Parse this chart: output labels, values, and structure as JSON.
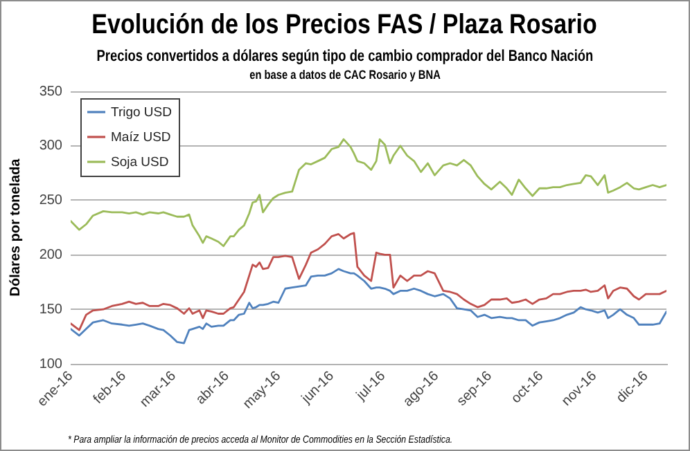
{
  "chart_data": {
    "type": "line",
    "title": "Evolución de los Precios FAS / Plaza Rosario",
    "subtitle": "Precios convertidos a dólares según tipo de cambio comprador del Banco Nación",
    "ylabel": "Dólares por tonelada",
    "annotations": [
      "en base a datos de CAC Rosario y BNA",
      "* Para ampliar la información de precios acceda al Monitor de Commodities en la Sección Estadística."
    ],
    "x": [
      "2016-01-04",
      "2016-01-09",
      "2016-01-13",
      "2016-01-17",
      "2016-01-23",
      "2016-01-28",
      "2016-02-03",
      "2016-02-07",
      "2016-02-11",
      "2016-02-15",
      "2016-02-19",
      "2016-02-24",
      "2016-02-27",
      "2016-03-02",
      "2016-03-06",
      "2016-03-10",
      "2016-03-13",
      "2016-03-15",
      "2016-03-19",
      "2016-03-21",
      "2016-03-23",
      "2016-03-26",
      "2016-03-30",
      "2016-04-02",
      "2016-04-06",
      "2016-04-08",
      "2016-04-11",
      "2016-04-14",
      "2016-04-17",
      "2016-04-19",
      "2016-04-21",
      "2016-04-23",
      "2016-04-25",
      "2016-04-28",
      "2016-05-01",
      "2016-05-04",
      "2016-05-08",
      "2016-05-12",
      "2016-05-16",
      "2016-05-20",
      "2016-05-23",
      "2016-05-27",
      "2016-05-31",
      "2016-06-04",
      "2016-06-08",
      "2016-06-11",
      "2016-06-15",
      "2016-06-17",
      "2016-06-19",
      "2016-06-23",
      "2016-06-27",
      "2016-06-30",
      "2016-07-02",
      "2016-07-05",
      "2016-07-08",
      "2016-07-10",
      "2016-07-14",
      "2016-07-18",
      "2016-07-22",
      "2016-07-26",
      "2016-07-30",
      "2016-08-03",
      "2016-08-08",
      "2016-08-12",
      "2016-08-16",
      "2016-08-20",
      "2016-08-24",
      "2016-08-28",
      "2016-09-01",
      "2016-09-05",
      "2016-09-10",
      "2016-09-14",
      "2016-09-17",
      "2016-09-21",
      "2016-09-25",
      "2016-09-29",
      "2016-10-03",
      "2016-10-07",
      "2016-10-11",
      "2016-10-15",
      "2016-10-19",
      "2016-10-23",
      "2016-10-27",
      "2016-10-30",
      "2016-11-02",
      "2016-11-06",
      "2016-11-10",
      "2016-11-12",
      "2016-11-15",
      "2016-11-19",
      "2016-11-23",
      "2016-11-27",
      "2016-11-30",
      "2016-12-04",
      "2016-12-08",
      "2016-12-12",
      "2016-12-16"
    ],
    "series": [
      {
        "name": "Trigo USD",
        "color": "#4f81bd",
        "values": [
          132,
          126,
          132,
          138,
          140,
          137,
          136,
          135,
          136,
          137,
          135,
          132,
          131,
          126,
          120,
          119,
          131,
          132,
          134,
          132,
          137,
          134,
          135,
          135,
          140,
          140,
          145,
          146,
          156,
          151,
          152,
          154,
          154,
          155,
          157,
          156,
          169,
          170,
          171,
          172,
          180,
          181,
          181,
          183,
          187,
          185,
          183,
          183,
          181,
          176,
          169,
          170,
          170,
          169,
          167,
          164,
          167,
          167,
          169,
          167,
          164,
          162,
          164,
          160,
          151,
          150,
          149,
          143,
          145,
          142,
          143,
          142,
          142,
          140,
          140,
          135,
          138,
          139,
          140,
          142,
          145,
          147,
          152,
          150,
          149,
          147,
          149,
          142,
          145,
          150,
          145,
          142,
          136,
          136,
          136,
          137,
          148
        ]
      },
      {
        "name": "Maíz USD",
        "color": "#c0504d",
        "values": [
          137,
          131,
          145,
          149,
          150,
          153,
          155,
          157,
          155,
          156,
          153,
          153,
          155,
          154,
          151,
          146,
          151,
          146,
          149,
          142,
          149,
          148,
          146,
          146,
          151,
          152,
          159,
          166,
          181,
          191,
          189,
          193,
          187,
          188,
          198,
          198,
          199,
          198,
          178,
          191,
          202,
          205,
          210,
          217,
          219,
          215,
          219,
          220,
          189,
          181,
          176,
          202,
          201,
          200,
          200,
          170,
          181,
          176,
          181,
          181,
          185,
          183,
          167,
          166,
          164,
          159,
          155,
          152,
          154,
          159,
          159,
          160,
          156,
          157,
          159,
          155,
          159,
          160,
          164,
          164,
          166,
          167,
          167,
          168,
          166,
          167,
          172,
          160,
          167,
          170,
          169,
          162,
          159,
          164,
          164,
          164,
          167
        ]
      },
      {
        "name": "Soja USD",
        "color": "#9bbb59",
        "values": [
          231,
          223,
          228,
          236,
          240,
          239,
          239,
          238,
          239,
          237,
          239,
          238,
          239,
          237,
          235,
          235,
          237,
          227,
          217,
          211,
          217,
          215,
          212,
          208,
          217,
          217,
          223,
          227,
          238,
          248,
          249,
          255,
          239,
          246,
          252,
          255,
          257,
          258,
          278,
          284,
          283,
          286,
          289,
          297,
          299,
          306,
          299,
          293,
          286,
          284,
          278,
          286,
          306,
          301,
          284,
          291,
          300,
          291,
          286,
          276,
          284,
          273,
          282,
          284,
          282,
          287,
          282,
          272,
          265,
          260,
          267,
          261,
          255,
          269,
          261,
          254,
          261,
          261,
          262,
          262,
          264,
          265,
          266,
          273,
          272,
          264,
          273,
          257,
          259,
          262,
          266,
          261,
          260,
          262,
          264,
          262,
          264
        ]
      }
    ],
    "xlim": [
      "2016-01-04",
      "2016-12-16"
    ],
    "xticks": [
      {
        "value": "2016-01-04",
        "label": "ene-16"
      },
      {
        "value": "2016-02-04",
        "label": "feb-16"
      },
      {
        "value": "2016-03-04",
        "label": "mar-16"
      },
      {
        "value": "2016-04-04",
        "label": "abr-16"
      },
      {
        "value": "2016-05-04",
        "label": "may-16"
      },
      {
        "value": "2016-06-04",
        "label": "jun-16"
      },
      {
        "value": "2016-07-04",
        "label": "jul-16"
      },
      {
        "value": "2016-08-04",
        "label": "ago-16"
      },
      {
        "value": "2016-09-04",
        "label": "sep-16"
      },
      {
        "value": "2016-10-04",
        "label": "oct-16"
      },
      {
        "value": "2016-11-04",
        "label": "nov-16"
      },
      {
        "value": "2016-12-04",
        "label": "dic-16"
      }
    ],
    "ylim": [
      100,
      350
    ],
    "yticks": [
      100,
      150,
      200,
      250,
      300,
      350
    ],
    "grid": "y",
    "legend": "top left",
    "marker": "none",
    "line_style": "solid"
  }
}
